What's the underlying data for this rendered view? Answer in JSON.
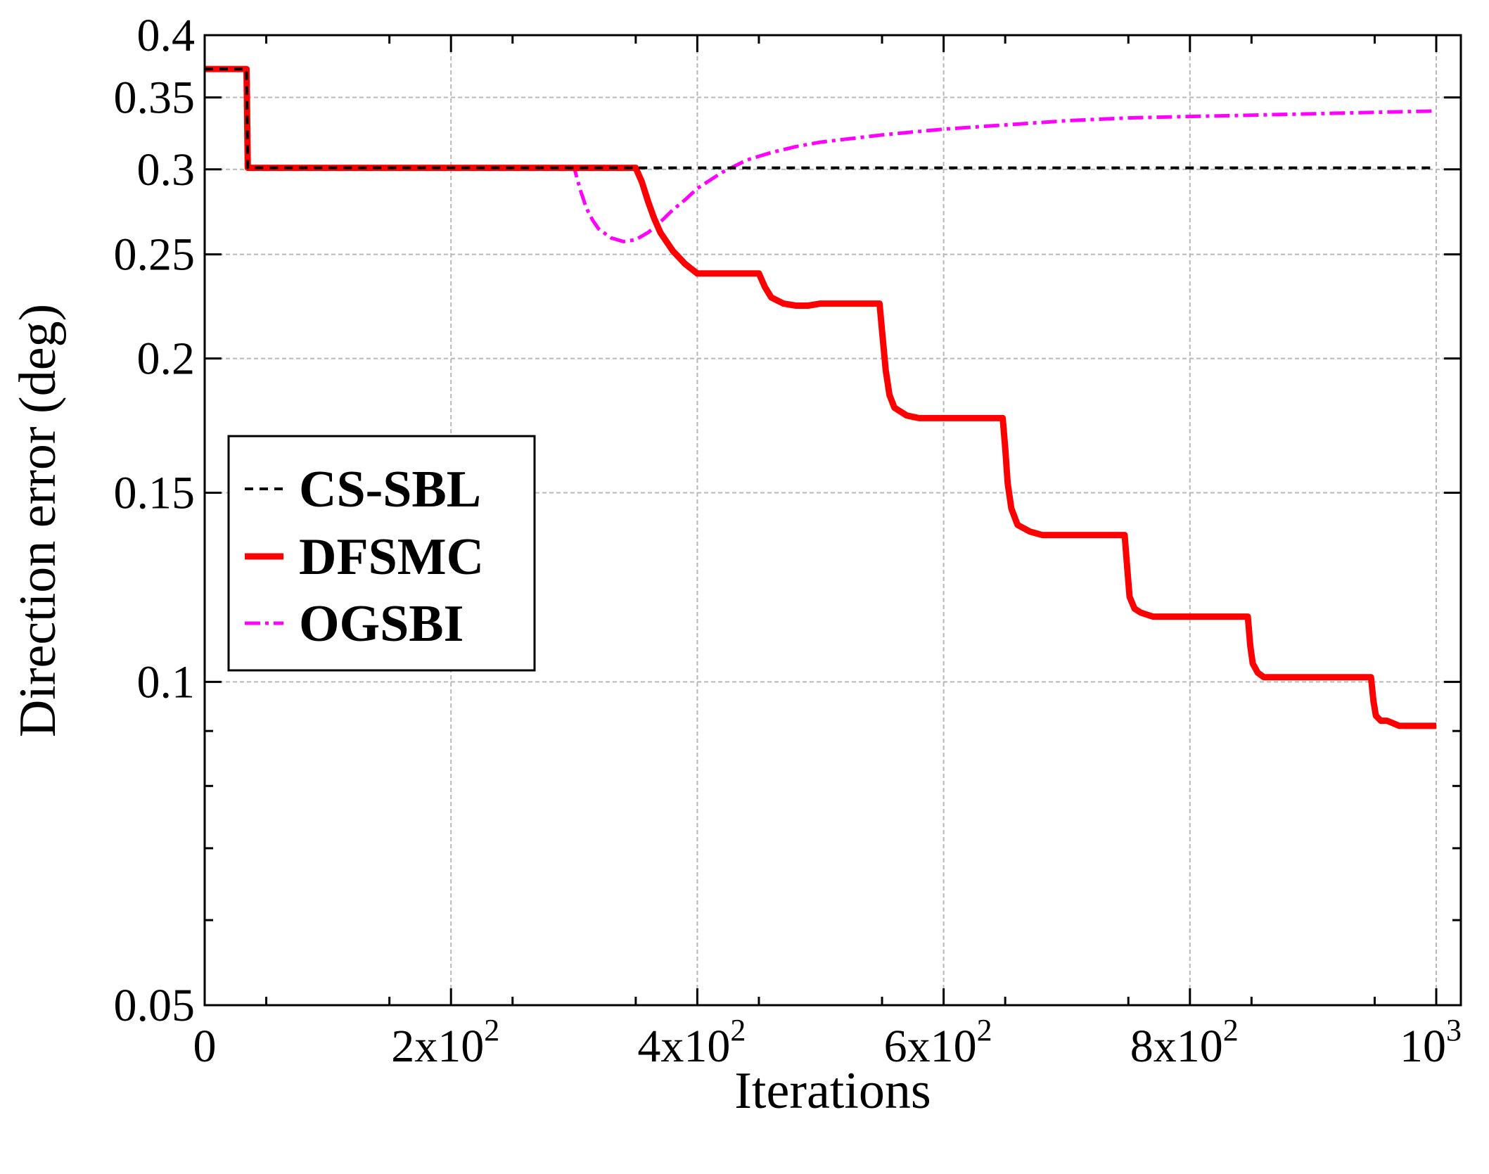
{
  "chart_data": {
    "type": "line",
    "xlabel": "Iterations",
    "ylabel": "Direction error (deg)",
    "xlim": [
      0,
      1000
    ],
    "ylim": [
      0.05,
      0.4
    ],
    "yscale": "log",
    "grid": true,
    "legend_position": "left-middle",
    "x_ticks": [
      {
        "value": 0,
        "base": "0",
        "exp": ""
      },
      {
        "value": 200,
        "base": "2x10",
        "exp": "2"
      },
      {
        "value": 400,
        "base": "4x10",
        "exp": "2"
      },
      {
        "value": 600,
        "base": "6x10",
        "exp": "2"
      },
      {
        "value": 800,
        "base": "8x10",
        "exp": "2"
      },
      {
        "value": 1000,
        "base": "10",
        "exp": "3"
      }
    ],
    "y_ticks": [
      {
        "value": 0.4,
        "label": "0.4"
      },
      {
        "value": 0.35,
        "label": "0.35"
      },
      {
        "value": 0.3,
        "label": "0.3"
      },
      {
        "value": 0.25,
        "label": "0.25"
      },
      {
        "value": 0.2,
        "label": "0.2"
      },
      {
        "value": 0.15,
        "label": "0.15"
      },
      {
        "value": 0.1,
        "label": "0.1"
      },
      {
        "value": 0.05,
        "label": "0.05"
      }
    ],
    "series": [
      {
        "name": "CS-SBL",
        "color": "#000000",
        "style": "dashed",
        "x": [
          0,
          34,
          35,
          1000
        ],
        "y": [
          0.372,
          0.372,
          0.301,
          0.301
        ]
      },
      {
        "name": "DFSMC",
        "color": "#ff0000",
        "style": "solid",
        "x": [
          0,
          34,
          35,
          350,
          355,
          360,
          365,
          370,
          380,
          390,
          400,
          450,
          455,
          460,
          470,
          480,
          490,
          500,
          548,
          550,
          553,
          556,
          560,
          570,
          580,
          600,
          648,
          650,
          652,
          655,
          660,
          670,
          680,
          700,
          747,
          749,
          751,
          755,
          760,
          770,
          780,
          800,
          847,
          849,
          851,
          855,
          860,
          870,
          880,
          900,
          947,
          949,
          951,
          955,
          960,
          970,
          1000
        ],
        "y": [
          0.372,
          0.372,
          0.301,
          0.301,
          0.292,
          0.28,
          0.27,
          0.262,
          0.252,
          0.245,
          0.24,
          0.24,
          0.233,
          0.228,
          0.225,
          0.224,
          0.224,
          0.225,
          0.225,
          0.212,
          0.195,
          0.185,
          0.18,
          0.177,
          0.176,
          0.176,
          0.176,
          0.165,
          0.153,
          0.145,
          0.14,
          0.138,
          0.137,
          0.137,
          0.137,
          0.128,
          0.12,
          0.117,
          0.116,
          0.115,
          0.115,
          0.115,
          0.115,
          0.108,
          0.104,
          0.102,
          0.101,
          0.101,
          0.101,
          0.101,
          0.101,
          0.096,
          0.093,
          0.092,
          0.092,
          0.091,
          0.091
        ]
      },
      {
        "name": "OGSBI",
        "color": "#ff00ff",
        "style": "dashdot",
        "x": [
          0,
          34,
          35,
          300,
          305,
          310,
          315,
          320,
          330,
          340,
          350,
          360,
          370,
          380,
          390,
          400,
          420,
          440,
          460,
          480,
          500,
          550,
          600,
          650,
          700,
          750,
          800,
          850,
          900,
          950,
          1000
        ],
        "y": [
          0.372,
          0.372,
          0.301,
          0.301,
          0.287,
          0.276,
          0.269,
          0.264,
          0.259,
          0.257,
          0.258,
          0.262,
          0.268,
          0.275,
          0.281,
          0.288,
          0.298,
          0.306,
          0.311,
          0.315,
          0.318,
          0.323,
          0.327,
          0.33,
          0.333,
          0.335,
          0.336,
          0.337,
          0.338,
          0.339,
          0.34
        ]
      }
    ]
  }
}
